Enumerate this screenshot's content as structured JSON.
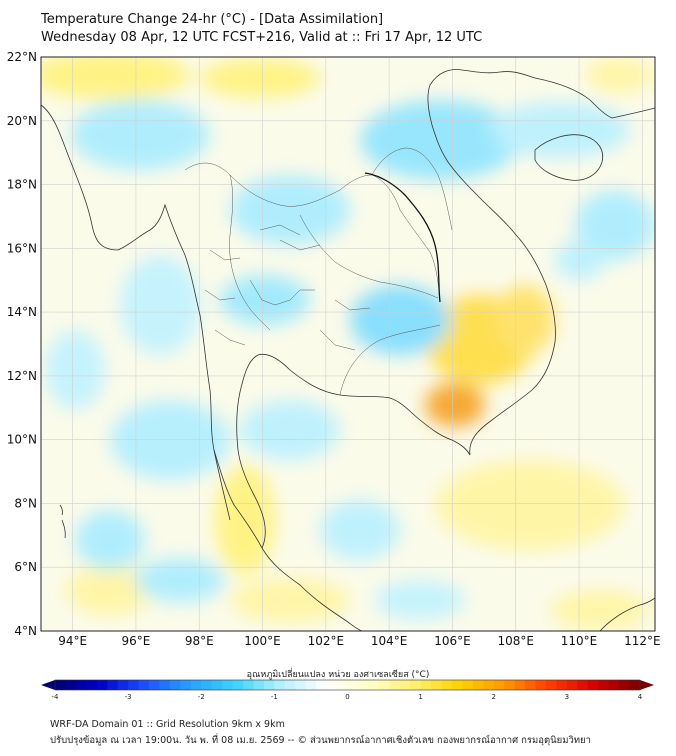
{
  "header": {
    "title_line1": "Temperature Change 24-hr (°C) - [Data Assimilation]",
    "title_line2": "Wednesday 08 Apr, 12 UTC FCST+216, Valid at :: Fri 17 Apr, 12 UTC"
  },
  "map": {
    "lat_labels": [
      "22°N",
      "20°N",
      "18°N",
      "16°N",
      "14°N",
      "12°N",
      "10°N",
      "8°N",
      "6°N",
      "4°N"
    ],
    "lon_labels": [
      "94°E",
      "96°E",
      "98°E",
      "100°E",
      "102°E",
      "104°E",
      "106°E",
      "108°E",
      "110°E",
      "112°E"
    ],
    "lat_range": [
      4,
      22
    ],
    "lon_range": [
      93,
      112.4
    ],
    "grid": true
  },
  "colorbar": {
    "title": "อุณหภูมิเปลี่ยนแปลง หน่วย องศาเซลเซียส (°C)",
    "ticks": [
      "-4",
      "-3",
      "-2",
      "-1",
      "0",
      "1",
      "2",
      "3",
      "4"
    ],
    "range": [
      -4,
      4
    ],
    "colors": [
      "#000070",
      "#0000c8",
      "#1e50ff",
      "#28a0ff",
      "#3cd2ff",
      "#b4f0ff",
      "#ffffff",
      "#ffffc8",
      "#fff06e",
      "#ffd200",
      "#ff9600",
      "#ff3c00",
      "#d20000",
      "#780000"
    ]
  },
  "footer": {
    "line1": "WRF-DA Domain 01 :: Grid Resolution 9km x 9km",
    "line2": "ปรับปรุงข้อมูล ณ เวลา 19:00น. วัน พ. ที่ 08 เม.ย. 2569 -- © ส่วนพยากรณ์อากาศเชิงตัวเลข กองพยากรณ์อากาศ กรมอุตุนิยมวิทยา"
  }
}
